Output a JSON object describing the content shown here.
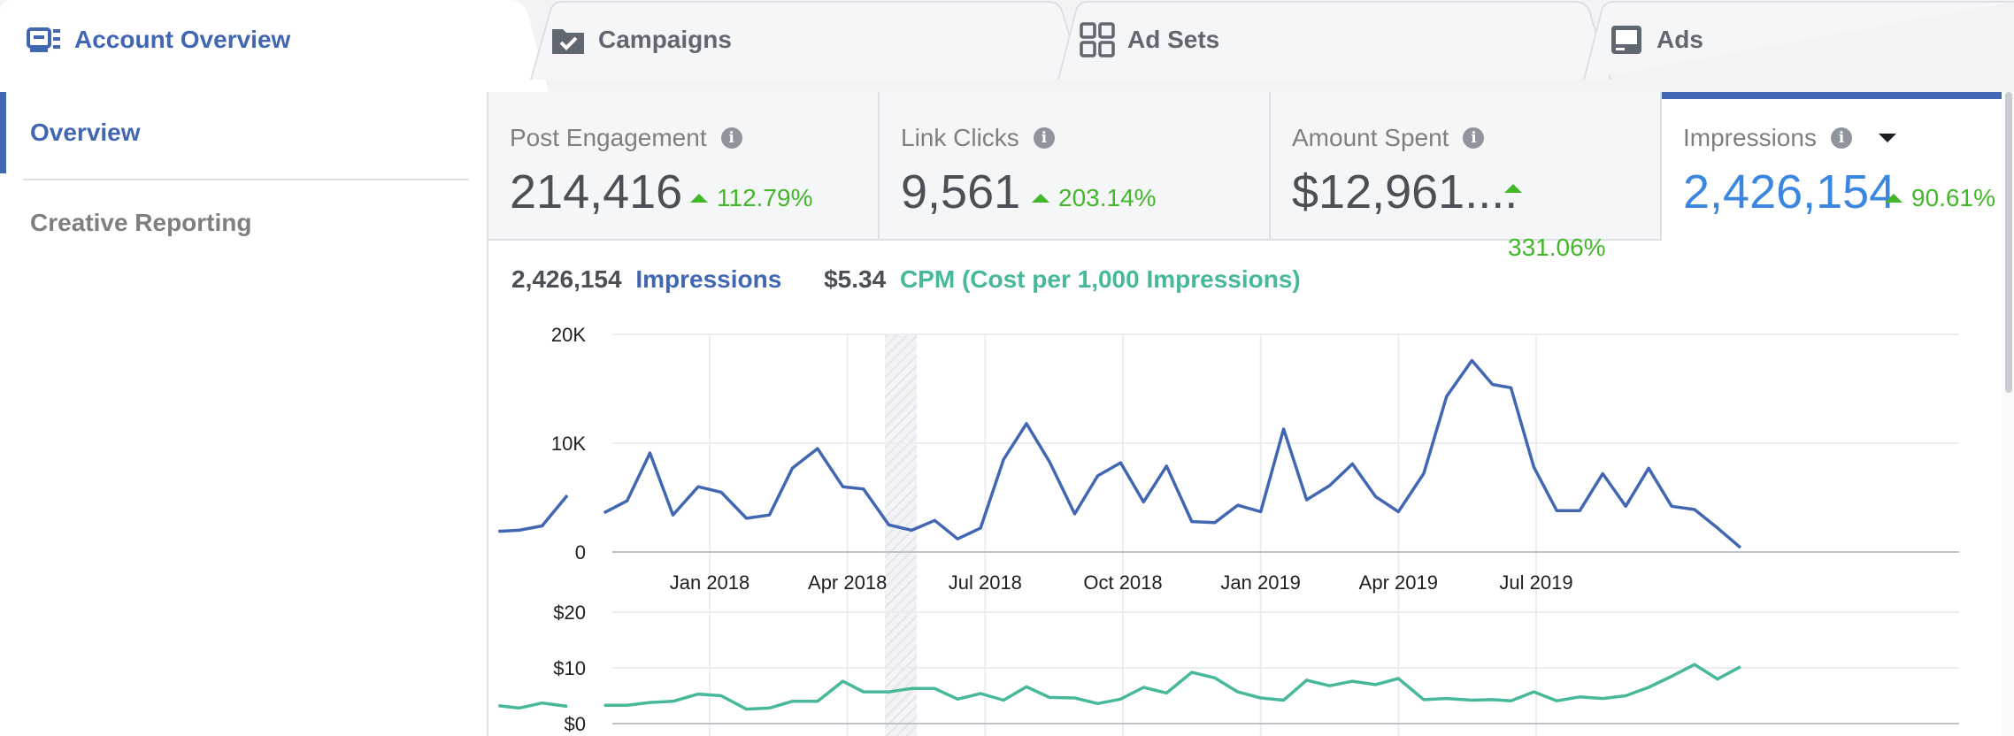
{
  "tabs": [
    {
      "label": "Account Overview",
      "icon": "account-overview-icon",
      "active": true
    },
    {
      "label": "Campaigns",
      "icon": "folder-check-icon",
      "active": false
    },
    {
      "label": "Ad Sets",
      "icon": "grid-icon",
      "active": false
    },
    {
      "label": "Ads",
      "icon": "ad-screen-icon",
      "active": false
    }
  ],
  "sidebar": {
    "items": [
      {
        "label": "Overview",
        "active": true
      },
      {
        "label": "Creative Reporting",
        "active": false
      }
    ]
  },
  "metrics": [
    {
      "label": "Post Engagement",
      "value": "214,416",
      "change": "112.79%",
      "active": false
    },
    {
      "label": "Link Clicks",
      "value": "9,561",
      "change": "203.14%",
      "active": false
    },
    {
      "label": "Amount Spent",
      "value": "$12,961....",
      "change": "331.06%",
      "active": false
    },
    {
      "label": "Impressions",
      "value": "2,426,154",
      "change": "90.61%",
      "active": true
    }
  ],
  "legend": {
    "primary_value": "2,426,154",
    "primary_label": "Impressions",
    "secondary_value": "$5.34",
    "secondary_label": "CPM (Cost per 1,000 Impressions)"
  },
  "colors": {
    "accent": "#4267b2",
    "impressions_line": "#4267b2",
    "cpm_line": "#47b99a",
    "positive": "#42b72a"
  },
  "chart_data": [
    {
      "type": "line",
      "name": "Impressions",
      "ylim": [
        0,
        20000
      ],
      "y_ticks": [
        "20K",
        "10K",
        "0"
      ],
      "x_ticks": [
        "Jan 2018",
        "Apr 2018",
        "Jul 2018",
        "Oct 2018",
        "Jan 2019",
        "Apr 2019",
        "Jul 2019"
      ],
      "series": [
        {
          "segments": [
            [
              [
                7.4,
                1900
              ],
              [
                7.85,
                2000
              ],
              [
                8.35,
                2400
              ],
              [
                8.9,
                5200
              ]
            ],
            [
              [
                9.7,
                3600
              ],
              [
                10.2,
                4700
              ],
              [
                10.7,
                9100
              ],
              [
                11.2,
                3400
              ],
              [
                11.75,
                6000
              ],
              [
                12.25,
                5500
              ],
              [
                12.8,
                3100
              ],
              [
                13.3,
                3400
              ],
              [
                13.8,
                7700
              ],
              [
                14.35,
                9500
              ],
              [
                14.9,
                6000
              ],
              [
                15.35,
                5800
              ],
              [
                15.9,
                2500
              ],
              [
                16.4,
                2000
              ],
              [
                16.9,
                2900
              ],
              [
                17.4,
                1200
              ],
              [
                17.9,
                2200
              ],
              [
                18.4,
                8500
              ],
              [
                18.9,
                11800
              ],
              [
                19.4,
                8300
              ],
              [
                19.95,
                3500
              ],
              [
                20.45,
                7000
              ],
              [
                20.95,
                8200
              ],
              [
                21.45,
                4600
              ],
              [
                21.95,
                7900
              ],
              [
                22.5,
                2800
              ],
              [
                23.0,
                2700
              ],
              [
                23.5,
                4300
              ],
              [
                24.0,
                3700
              ],
              [
                24.5,
                11300
              ],
              [
                25.0,
                4800
              ],
              [
                25.5,
                6100
              ],
              [
                26.0,
                8100
              ],
              [
                26.5,
                5100
              ],
              [
                27.0,
                3700
              ],
              [
                27.55,
                7200
              ],
              [
                28.05,
                14300
              ],
              [
                28.6,
                17600
              ],
              [
                29.05,
                15400
              ],
              [
                29.45,
                15100
              ],
              [
                29.95,
                7800
              ],
              [
                30.45,
                3800
              ],
              [
                30.95,
                3800
              ],
              [
                31.45,
                7200
              ],
              [
                31.95,
                4200
              ],
              [
                32.45,
                7700
              ],
              [
                32.95,
                4200
              ],
              [
                33.45,
                3900
              ],
              [
                33.95,
                2200
              ],
              [
                34.45,
                400
              ]
            ]
          ]
        }
      ]
    },
    {
      "type": "line",
      "name": "CPM (Cost per 1,000 Impressions)",
      "ylim": [
        0,
        20
      ],
      "y_ticks": [
        "$20",
        "$10",
        "$0"
      ],
      "series": [
        {
          "segments": [
            [
              [
                7.4,
                3.2
              ],
              [
                7.85,
                2.8
              ],
              [
                8.35,
                3.7
              ],
              [
                8.9,
                3.1
              ]
            ],
            [
              [
                9.7,
                3.3
              ],
              [
                10.2,
                3.3
              ],
              [
                10.7,
                3.8
              ],
              [
                11.2,
                4.0
              ],
              [
                11.75,
                5.3
              ],
              [
                12.25,
                5.0
              ],
              [
                12.8,
                2.6
              ],
              [
                13.3,
                2.8
              ],
              [
                13.8,
                4.0
              ],
              [
                14.35,
                4.0
              ],
              [
                14.9,
                7.6
              ],
              [
                15.35,
                5.7
              ],
              [
                15.9,
                5.7
              ],
              [
                16.4,
                6.3
              ],
              [
                16.9,
                6.3
              ],
              [
                17.4,
                4.4
              ],
              [
                17.9,
                5.4
              ],
              [
                18.4,
                4.2
              ],
              [
                18.9,
                6.6
              ],
              [
                19.4,
                4.7
              ],
              [
                19.95,
                4.6
              ],
              [
                20.45,
                3.6
              ],
              [
                20.95,
                4.4
              ],
              [
                21.45,
                6.5
              ],
              [
                21.95,
                5.5
              ],
              [
                22.5,
                9.2
              ],
              [
                23.0,
                8.2
              ],
              [
                23.5,
                5.7
              ],
              [
                24.0,
                4.6
              ],
              [
                24.5,
                4.2
              ],
              [
                25.0,
                7.8
              ],
              [
                25.5,
                6.8
              ],
              [
                26.0,
                7.6
              ],
              [
                26.5,
                7.0
              ],
              [
                27.0,
                8.1
              ],
              [
                27.55,
                4.3
              ],
              [
                28.05,
                4.5
              ],
              [
                28.6,
                4.2
              ],
              [
                29.05,
                4.3
              ],
              [
                29.45,
                4.1
              ],
              [
                29.95,
                5.7
              ],
              [
                30.45,
                4.1
              ],
              [
                30.95,
                4.8
              ],
              [
                31.45,
                4.5
              ],
              [
                31.95,
                5.0
              ],
              [
                32.45,
                6.5
              ],
              [
                32.95,
                8.5
              ],
              [
                33.45,
                10.6
              ],
              [
                33.95,
                8.0
              ],
              [
                34.45,
                10.2
              ]
            ]
          ]
        }
      ]
    }
  ]
}
